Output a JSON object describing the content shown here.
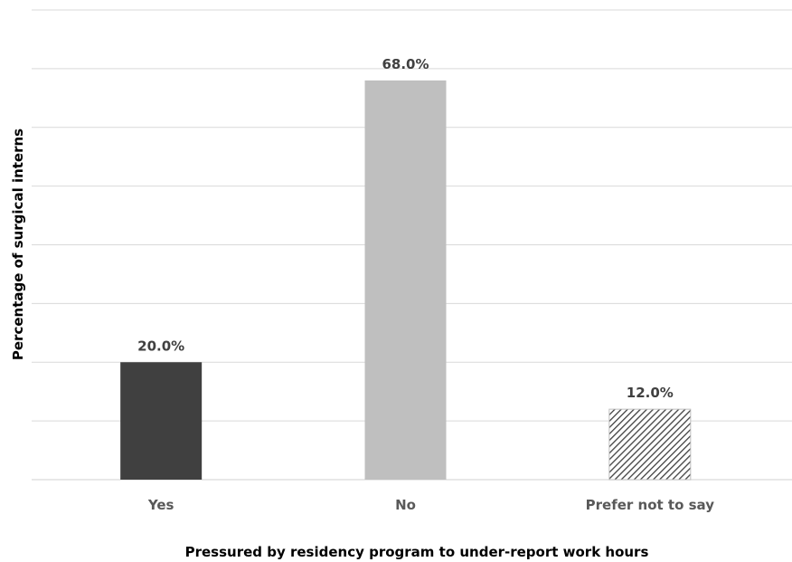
{
  "chart_data": {
    "type": "bar",
    "categories": [
      "Yes",
      "No",
      "Prefer not to say"
    ],
    "values": [
      20.0,
      68.0,
      12.0
    ],
    "value_labels": [
      "20.0%",
      "68.0%",
      "12.0%"
    ],
    "title": "",
    "xlabel": "Pressured by residency program to under-report work hours",
    "ylabel": "Percentage of surgical interns",
    "ylim": [
      0,
      80
    ],
    "grid": true,
    "legend": "none",
    "bar_colors": [
      "#404040",
      "#bfbfbf",
      "hatched"
    ],
    "gridline_color": "#d9d9d9"
  }
}
